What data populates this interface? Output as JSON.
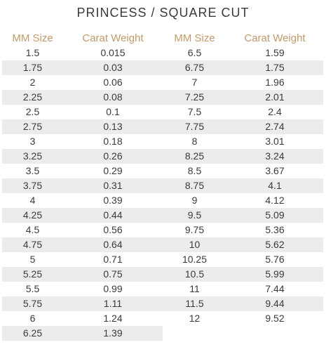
{
  "title": "PRINCESS / SQUARE CUT",
  "headers": [
    "MM Size",
    "Carat Weight",
    "MM Size",
    "Carat Weight"
  ],
  "left_rows": [
    {
      "mm": "1.5",
      "carat": "0.015"
    },
    {
      "mm": "1.75",
      "carat": "0.03"
    },
    {
      "mm": "2",
      "carat": "0.06"
    },
    {
      "mm": "2.25",
      "carat": "0.08"
    },
    {
      "mm": "2.5",
      "carat": "0.1"
    },
    {
      "mm": "2.75",
      "carat": "0.13"
    },
    {
      "mm": "3",
      "carat": "0.18"
    },
    {
      "mm": "3.25",
      "carat": "0.26"
    },
    {
      "mm": "3.5",
      "carat": "0.29"
    },
    {
      "mm": "3.75",
      "carat": "0.31"
    },
    {
      "mm": "4",
      "carat": "0.39"
    },
    {
      "mm": "4.25",
      "carat": "0.44"
    },
    {
      "mm": "4.5",
      "carat": "0.56"
    },
    {
      "mm": "4.75",
      "carat": "0.64"
    },
    {
      "mm": "5",
      "carat": "0.71"
    },
    {
      "mm": "5.25",
      "carat": "0.75"
    },
    {
      "mm": "5.5",
      "carat": "0.99"
    },
    {
      "mm": "5.75",
      "carat": "1.11"
    },
    {
      "mm": "6",
      "carat": "1.24"
    },
    {
      "mm": "6.25",
      "carat": "1.39"
    }
  ],
  "right_rows": [
    {
      "mm": "6.5",
      "carat": "1.59"
    },
    {
      "mm": "6.75",
      "carat": "1.75"
    },
    {
      "mm": "7",
      "carat": "1.96"
    },
    {
      "mm": "7.25",
      "carat": "2.01"
    },
    {
      "mm": "7.5",
      "carat": "2.4"
    },
    {
      "mm": "7.75",
      "carat": "2.74"
    },
    {
      "mm": "8",
      "carat": "3.01"
    },
    {
      "mm": "8.25",
      "carat": "3.24"
    },
    {
      "mm": "8.5",
      "carat": "3.67"
    },
    {
      "mm": "8.75",
      "carat": "4.1"
    },
    {
      "mm": "9",
      "carat": "4.12"
    },
    {
      "mm": "9.5",
      "carat": "5.09"
    },
    {
      "mm": "9.75",
      "carat": "5.36"
    },
    {
      "mm": "10",
      "carat": "5.62"
    },
    {
      "mm": "10.25",
      "carat": "5.76"
    },
    {
      "mm": "10.5",
      "carat": "5.99"
    },
    {
      "mm": "11",
      "carat": "7.44"
    },
    {
      "mm": "11.5",
      "carat": "9.44"
    },
    {
      "mm": "12",
      "carat": "9.52"
    }
  ],
  "colors": {
    "header": "#c19a6b",
    "text": "#3a3a3a",
    "stripe": "#ececec"
  }
}
